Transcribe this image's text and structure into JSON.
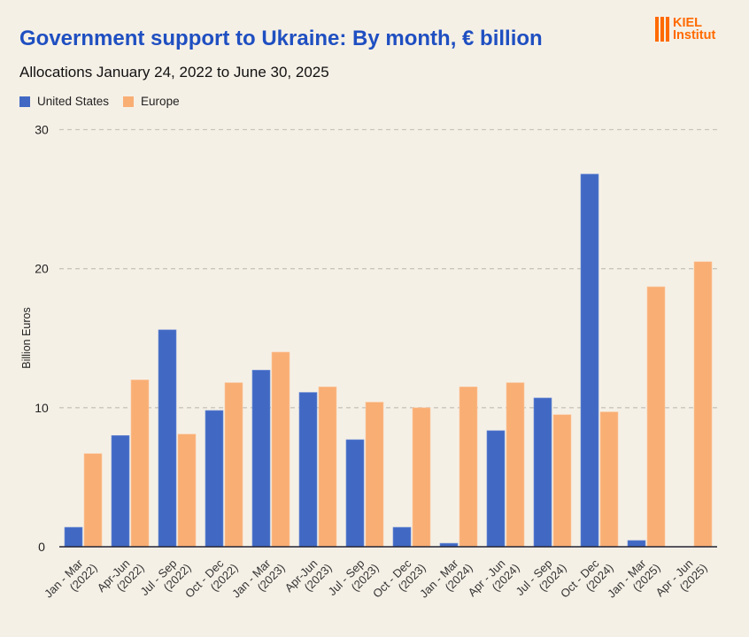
{
  "header": {
    "title": "Government support to Ukraine: By month, € billion",
    "subtitle": "Allocations January 24, 2022 to June 30, 2025",
    "logo_text": [
      "KIEL",
      "Institut"
    ]
  },
  "chart_data": {
    "type": "bar",
    "title": "Government support to Ukraine: By month, € billion",
    "subtitle": "Allocations January 24, 2022 to June 30, 2025",
    "xlabel": "",
    "ylabel": "Billion Euros",
    "ylim": [
      0,
      30
    ],
    "yticks": [
      0,
      10,
      20,
      30
    ],
    "grid": true,
    "legend_position": "top-left",
    "categories": [
      [
        "Jan - Mar",
        "(2022)"
      ],
      [
        "Apr-Jun",
        "(2022)"
      ],
      [
        "Jul - Sep",
        "(2022)"
      ],
      [
        "Oct - Dec",
        "(2022)"
      ],
      [
        "Jan - Mar",
        "(2023)"
      ],
      [
        "Apr-Jun",
        "(2023)"
      ],
      [
        "Jul - Sep",
        "(2023)"
      ],
      [
        "Oct - Dec",
        "(2023)"
      ],
      [
        "Jan - Mar",
        "(2024)"
      ],
      [
        "Apr - Jun",
        "(2024)"
      ],
      [
        "Jul - Sep",
        "(2024)"
      ],
      [
        "Oct - Dec",
        "(2024)"
      ],
      [
        "Jan - Mar",
        "(2025)"
      ],
      [
        "Apr - Jun",
        "(2025)"
      ]
    ],
    "series": [
      {
        "name": "United States",
        "color": "#4169c4",
        "values": [
          1.4,
          8.0,
          15.6,
          9.8,
          12.7,
          11.1,
          7.7,
          1.4,
          0.25,
          8.35,
          10.7,
          26.8,
          0.45,
          0
        ]
      },
      {
        "name": "Europe",
        "color": "#f9ae74",
        "values": [
          6.7,
          12.0,
          8.1,
          11.8,
          14.0,
          11.5,
          10.4,
          10.0,
          11.5,
          11.8,
          9.5,
          9.7,
          18.7,
          20.5
        ]
      }
    ]
  }
}
